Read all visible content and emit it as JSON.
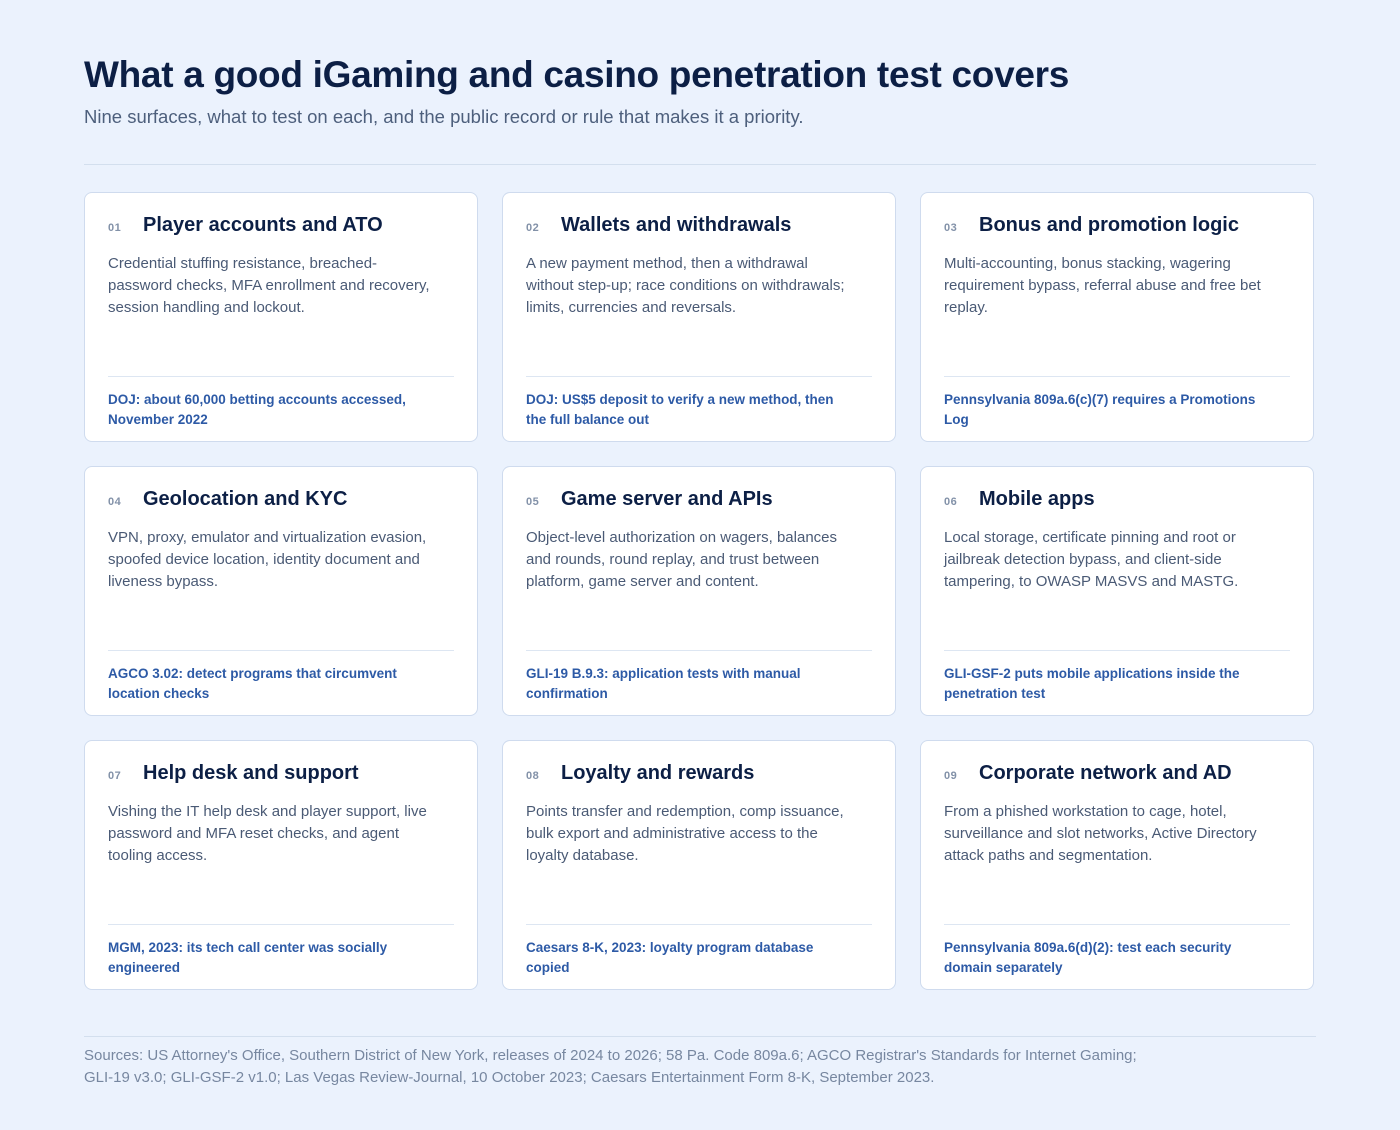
{
  "header": {
    "title": "What a good iGaming and casino penetration test covers",
    "subtitle": "Nine surfaces, what to test on each, and the public record or rule that makes it a priority."
  },
  "cards": [
    {
      "number": "01",
      "title": "Player accounts and ATO",
      "body": "Credential stuffing resistance, breached-password checks, MFA enrollment and recovery, session handling and lockout.",
      "source": "DOJ: about 60,000 betting accounts accessed, November 2022"
    },
    {
      "number": "02",
      "title": "Wallets and withdrawals",
      "body": "A new payment method, then a withdrawal without step-up; race conditions on withdrawals; limits, currencies and reversals.",
      "source": "DOJ: US$5 deposit to verify a new method, then the full balance out"
    },
    {
      "number": "03",
      "title": "Bonus and promotion logic",
      "body": "Multi-accounting, bonus stacking, wagering requirement bypass, referral abuse and free bet replay.",
      "source": "Pennsylvania 809a.6(c)(7) requires a Promotions Log"
    },
    {
      "number": "04",
      "title": "Geolocation and KYC",
      "body": "VPN, proxy, emulator and virtualization evasion, spoofed device location, identity document and liveness bypass.",
      "source": "AGCO 3.02: detect programs that circumvent location checks"
    },
    {
      "number": "05",
      "title": "Game server and APIs",
      "body": "Object-level authorization on wagers, balances and rounds, round replay, and trust between platform, game server and content.",
      "source": "GLI-19 B.9.3: application tests with manual confirmation"
    },
    {
      "number": "06",
      "title": "Mobile apps",
      "body": "Local storage, certificate pinning and root or jailbreak detection bypass, and client-side tampering, to OWASP MASVS and MASTG.",
      "source": "GLI-GSF-2 puts mobile applications inside the penetration test"
    },
    {
      "number": "07",
      "title": "Help desk and support",
      "body": "Vishing the IT help desk and player support, live password and MFA reset checks, and agent tooling access.",
      "source": "MGM, 2023: its tech call center was socially engineered"
    },
    {
      "number": "08",
      "title": "Loyalty and rewards",
      "body": "Points transfer and redemption, comp issuance, bulk export and administrative access to the loyalty database.",
      "source": "Caesars 8-K, 2023: loyalty program database copied"
    },
    {
      "number": "09",
      "title": "Corporate network and AD",
      "body": "From a phished workstation to cage, hotel, surveillance and slot networks, Active Directory attack paths and segmentation.",
      "source": "Pennsylvania 809a.6(d)(2): test each security domain separately"
    }
  ],
  "footer": {
    "sources": "Sources: US Attorney's Office, Southern District of New York, releases of 2024 to 2026; 58 Pa. Code 809a.6; AGCO Registrar's Standards for Internet Gaming; GLI-19 v3.0; GLI-GSF-2 v1.0; Las Vegas Review-Journal, 10 October 2023; Caesars Entertainment Form 8-K, September 2023."
  }
}
